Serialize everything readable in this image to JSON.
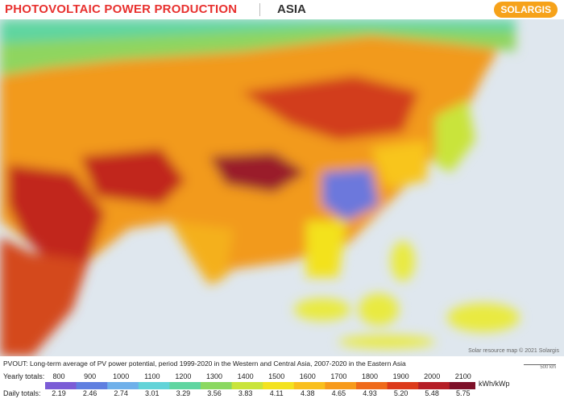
{
  "header": {
    "title": "PHOTOVOLTAIC POWER PRODUCTION",
    "region": "ASIA",
    "brand": "SOLARGIS"
  },
  "map": {
    "credit": "Solar resource map © 2021 Solargis",
    "scale": "500 km"
  },
  "caption": "PVOUT: Long-term average of PV power potential, period 1999-2020 in the Western and Central Asia, 2007-2020 in the Eastern Asia",
  "legend": {
    "yearly_label": "Yearly totals:",
    "daily_label": "Daily totals:",
    "unit": "kWh/kWp",
    "yearly": [
      "800",
      "900",
      "1000",
      "1100",
      "1200",
      "1300",
      "1400",
      "1500",
      "1600",
      "1700",
      "1800",
      "1900",
      "2000",
      "2100"
    ],
    "daily": [
      "2.19",
      "2.46",
      "2.74",
      "3.01",
      "3.29",
      "3.56",
      "3.83",
      "4.11",
      "4.38",
      "4.65",
      "4.93",
      "5.20",
      "5.48",
      "5.75"
    ],
    "colors": [
      "#7b5cd6",
      "#5f7fe0",
      "#6fb0ea",
      "#62d3d8",
      "#5fd5a0",
      "#8bd860",
      "#c9e43a",
      "#f3e21f",
      "#f9bf1d",
      "#f79a1b",
      "#ef6a1a",
      "#dc3a1a",
      "#b51e26",
      "#7d1028"
    ]
  }
}
